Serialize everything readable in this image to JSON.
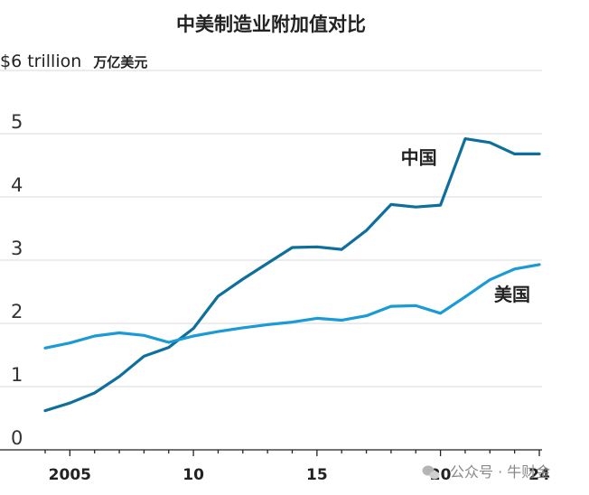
{
  "chart_data": {
    "type": "line",
    "title": "中美制造业附加值对比",
    "ylabel": "$6 trillion",
    "ylabel_cn": "万亿美元",
    "xlabel": "",
    "ylim": [
      0,
      6
    ],
    "xlim": [
      2004,
      2024
    ],
    "yticks": [
      0,
      1,
      2,
      3,
      4,
      5
    ],
    "xticks": [
      {
        "value": 2005,
        "label": "2005"
      },
      {
        "value": 2010,
        "label": "10"
      },
      {
        "value": 2015,
        "label": "15"
      },
      {
        "value": 2020,
        "label": "20"
      },
      {
        "value": 2024,
        "label": "24"
      }
    ],
    "grid": true,
    "x": [
      2004,
      2005,
      2006,
      2007,
      2008,
      2009,
      2010,
      2011,
      2012,
      2013,
      2014,
      2015,
      2016,
      2017,
      2018,
      2019,
      2020,
      2021,
      2022,
      2023,
      2024
    ],
    "series": [
      {
        "name": "中国",
        "color": "#0e6f9c",
        "values": [
          0.62,
          0.74,
          0.9,
          1.16,
          1.48,
          1.62,
          1.92,
          2.43,
          2.7,
          2.95,
          3.2,
          3.21,
          3.17,
          3.47,
          3.88,
          3.84,
          3.87,
          4.92,
          4.86,
          4.68,
          4.68
        ]
      },
      {
        "name": "美国",
        "color": "#1a9ad6",
        "values": [
          1.61,
          1.69,
          1.8,
          1.85,
          1.81,
          1.7,
          1.8,
          1.87,
          1.93,
          1.98,
          2.02,
          2.08,
          2.05,
          2.12,
          2.27,
          2.28,
          2.16,
          2.42,
          2.69,
          2.86,
          2.93
        ]
      }
    ]
  },
  "watermark": {
    "text": "公众号 · 牛财金",
    "icon": "wechat-icon"
  }
}
